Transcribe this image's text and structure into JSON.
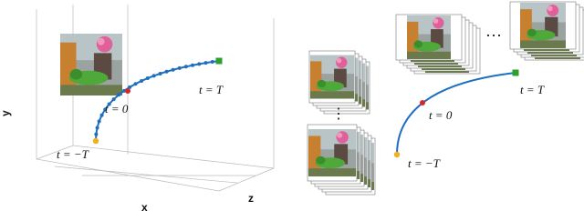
{
  "left_panel": {
    "t_end": "t = T",
    "t_zero": "t = 0",
    "t_start": "t = −T",
    "axis_y": "y",
    "axis_x": "x",
    "axis_z": "z"
  },
  "right_panel": {
    "t_end": "t = T",
    "t_zero": "t = 0",
    "t_start": "t = −T",
    "ellipsis_h": "…",
    "ellipsis_v": "⋮"
  }
}
